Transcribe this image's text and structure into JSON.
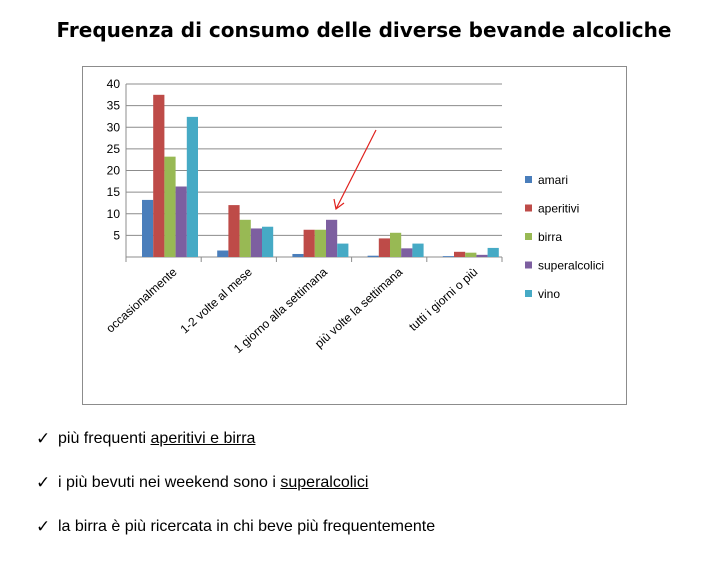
{
  "title": "Frequenza di consumo delle diverse bevande alcoliche",
  "bullets": [
    {
      "pre": "più frequenti ",
      "link": "aperitivi e birra",
      "post": ""
    },
    {
      "pre": "i più bevuti nei weekend sono i ",
      "link": "superalcolici",
      "post": ""
    },
    {
      "pre": "la birra è più ricercata in chi beve più frequentemente",
      "link": "",
      "post": ""
    }
  ],
  "chart_data": {
    "type": "bar",
    "categories": [
      "occasionalmente",
      "1-2 volte al mese",
      "1 giorno alla settimana",
      "più volte la settimana",
      "tutti i giorni o più"
    ],
    "series": [
      {
        "name": "amari",
        "color": "#4a7ebb",
        "values": [
          13.2,
          1.5,
          0.7,
          0.3,
          0.2
        ]
      },
      {
        "name": "aperitivi",
        "color": "#be4b48",
        "values": [
          37.5,
          12.0,
          6.3,
          4.3,
          1.2
        ]
      },
      {
        "name": "birra",
        "color": "#98b954",
        "values": [
          23.2,
          8.6,
          6.3,
          5.6,
          1.0
        ]
      },
      {
        "name": "superalcolici",
        "color": "#7d5fa0",
        "values": [
          16.3,
          6.6,
          8.6,
          2.0,
          0.5
        ]
      },
      {
        "name": "vino",
        "color": "#46aac5",
        "values": [
          32.4,
          7.0,
          3.1,
          3.1,
          2.1
        ]
      }
    ],
    "yticks": [
      "5",
      "10",
      "15",
      "20",
      "25",
      "30",
      "35",
      "40"
    ],
    "ylim": [
      0,
      40
    ],
    "grid": true,
    "legend": "right",
    "annotation": "red arrow pointing to superalcolici bar at 1 giorno alla settimana"
  }
}
